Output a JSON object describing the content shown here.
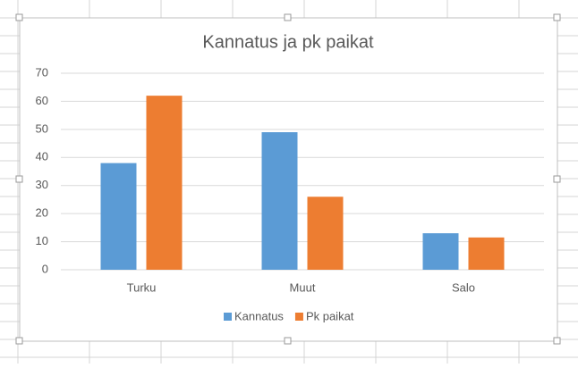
{
  "chart_data": {
    "type": "bar",
    "title": "Kannatus ja pk paikat",
    "categories": [
      "Turku",
      "Muut",
      "Salo"
    ],
    "series": [
      {
        "name": "Kannatus",
        "color": "#5b9bd5",
        "values": [
          38,
          49,
          13
        ]
      },
      {
        "name": "Pk paikat",
        "color": "#ed7d31",
        "values": [
          62,
          26,
          11.5
        ]
      }
    ],
    "ylim": [
      0,
      70
    ],
    "yticks": [
      0,
      10,
      20,
      30,
      40,
      50,
      60,
      70
    ],
    "grid": true,
    "legend": "bottom"
  }
}
